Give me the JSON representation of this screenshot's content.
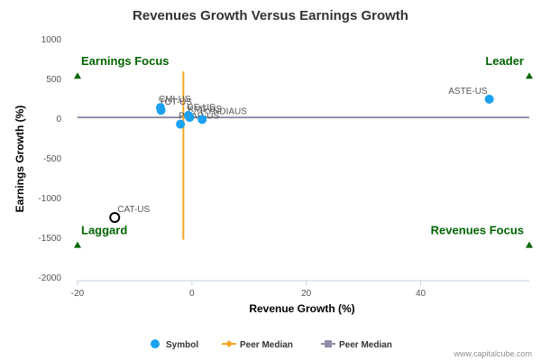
{
  "chart_data": {
    "type": "scatter",
    "title": "Revenues Growth Versus Earnings Growth",
    "xlabel": "Revenue Growth (%)",
    "ylabel": "Earnings Growth (%)",
    "xlim": [
      -20,
      59
    ],
    "ylim": [
      -2000,
      1000
    ],
    "xticks": [
      -20,
      0,
      20,
      40
    ],
    "yticks": [
      1000,
      500,
      0,
      -500,
      -1000,
      -1500,
      -2000
    ],
    "series": [
      {
        "name": "Symbol",
        "color": "#1aa1f0",
        "points": [
          {
            "label": "ASTE-US",
            "x": 52,
            "y": 240
          },
          {
            "label": "CMI-US",
            "x": -5.5,
            "y": 135
          },
          {
            "label": "TOT-US",
            "x": -5.4,
            "y": 100
          },
          {
            "label": "GE-US",
            "x": -0.6,
            "y": 35
          },
          {
            "label": "KMT-US",
            "x": -0.4,
            "y": 10
          },
          {
            "label": "HYNDIAUS",
            "x": 1.8,
            "y": -15
          },
          {
            "label": "PCAR-US",
            "x": -2,
            "y": -75
          }
        ]
      }
    ],
    "subject": {
      "label": "CAT-US",
      "x": -13.5,
      "y": -1250
    },
    "peer_median_x": {
      "name": "Peer Median",
      "value": -1.5,
      "from_y": -1530,
      "to_y": 590,
      "color": "#f5a623"
    },
    "peer_median_y": {
      "name": "Peer Median",
      "value": 10,
      "color": "#8e8ea6"
    },
    "quadrants": [
      {
        "label": "Earnings Focus",
        "x": -20,
        "y": 600,
        "anchor": "start"
      },
      {
        "label": "Leader",
        "x": 59,
        "y": 600,
        "anchor": "end"
      },
      {
        "label": "Laggard",
        "x": -20,
        "y": -1530,
        "anchor": "start"
      },
      {
        "label": "Revenues Focus",
        "x": 59,
        "y": -1530,
        "anchor": "end"
      }
    ],
    "quadrant_color": "#006400",
    "legend": [
      {
        "label": "Symbol",
        "marker": "circle",
        "color": "#1aa1f0"
      },
      {
        "label": "Peer Median",
        "marker": "diamond",
        "color": "#f5a623"
      },
      {
        "label": "Peer Median",
        "marker": "square",
        "color": "#8e8ea6"
      }
    ],
    "legend_position": "bottom-center",
    "grid": false
  },
  "credit": "www.capitalcube.com"
}
